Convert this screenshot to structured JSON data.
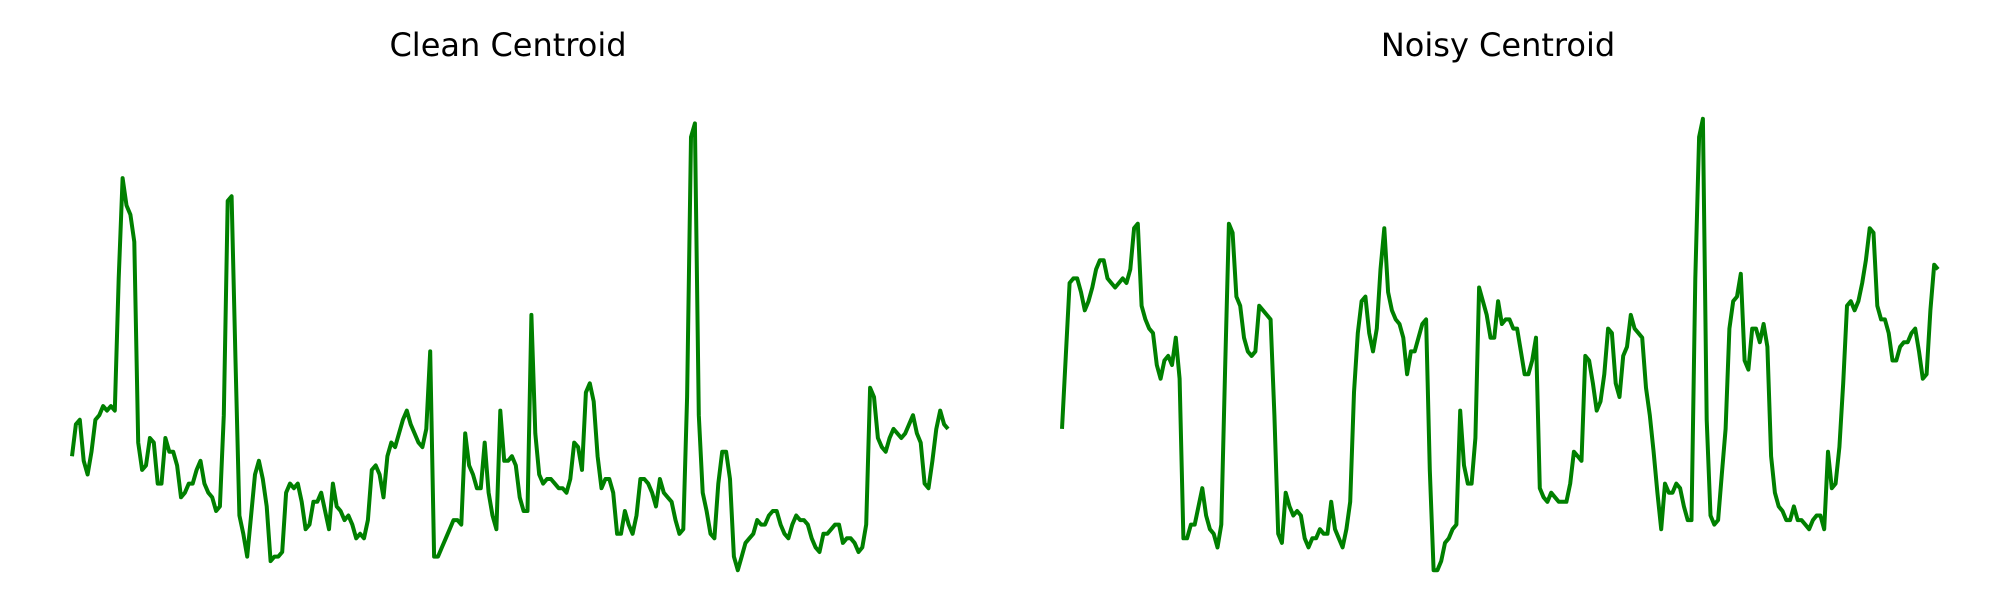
{
  "chart_data": [
    {
      "type": "line",
      "title": "Clean Centroid",
      "xlabel": "",
      "ylabel": "",
      "grid": false,
      "axes_visible": false,
      "color": "#008000",
      "ylim": [
        0,
        1
      ],
      "series": [
        {
          "values": [
            0.21,
            0.28,
            0.29,
            0.2,
            0.17,
            0.22,
            0.29,
            0.3,
            0.32,
            0.31,
            0.32,
            0.31,
            0.6,
            0.82,
            0.76,
            0.74,
            0.68,
            0.24,
            0.18,
            0.19,
            0.25,
            0.24,
            0.15,
            0.15,
            0.25,
            0.22,
            0.22,
            0.19,
            0.12,
            0.13,
            0.15,
            0.15,
            0.18,
            0.2,
            0.15,
            0.13,
            0.12,
            0.09,
            0.1,
            0.3,
            0.77,
            0.78,
            0.42,
            0.08,
            0.04,
            -0.01,
            0.08,
            0.17,
            0.2,
            0.16,
            0.1,
            -0.02,
            -0.01,
            -0.01,
            0.0,
            0.13,
            0.15,
            0.14,
            0.15,
            0.11,
            0.05,
            0.06,
            0.11,
            0.11,
            0.13,
            0.09,
            0.05,
            0.15,
            0.1,
            0.09,
            0.07,
            0.08,
            0.06,
            0.03,
            0.04,
            0.03,
            0.07,
            0.18,
            0.19,
            0.17,
            0.12,
            0.21,
            0.24,
            0.23,
            0.26,
            0.29,
            0.31,
            0.28,
            0.26,
            0.24,
            0.23,
            0.27,
            0.44,
            -0.01,
            -0.01,
            0.01,
            0.03,
            0.05,
            0.07,
            0.07,
            0.06,
            0.26,
            0.19,
            0.17,
            0.14,
            0.14,
            0.24,
            0.13,
            0.08,
            0.05,
            0.31,
            0.2,
            0.2,
            0.21,
            0.19,
            0.12,
            0.09,
            0.09,
            0.52,
            0.26,
            0.17,
            0.15,
            0.16,
            0.16,
            0.15,
            0.14,
            0.14,
            0.13,
            0.16,
            0.24,
            0.23,
            0.18,
            0.35,
            0.37,
            0.33,
            0.21,
            0.14,
            0.16,
            0.16,
            0.13,
            0.04,
            0.04,
            0.09,
            0.06,
            0.04,
            0.08,
            0.16,
            0.16,
            0.15,
            0.13,
            0.1,
            0.16,
            0.13,
            0.12,
            0.11,
            0.07,
            0.04,
            0.05,
            0.34,
            0.91,
            0.94,
            0.3,
            0.13,
            0.09,
            0.04,
            0.03,
            0.15,
            0.22,
            0.22,
            0.16,
            -0.01,
            -0.04,
            -0.01,
            0.02,
            0.03,
            0.04,
            0.07,
            0.06,
            0.06,
            0.08,
            0.09,
            0.09,
            0.06,
            0.04,
            0.03,
            0.06,
            0.08,
            0.07,
            0.07,
            0.06,
            0.03,
            0.01,
            0.0,
            0.04,
            0.04,
            0.05,
            0.06,
            0.06,
            0.02,
            0.03,
            0.03,
            0.02,
            0.0,
            0.01,
            0.06,
            0.36,
            0.34,
            0.25,
            0.23,
            0.22,
            0.25,
            0.27,
            0.26,
            0.25,
            0.26,
            0.28,
            0.3,
            0.26,
            0.24,
            0.15,
            0.14,
            0.2,
            0.27,
            0.31,
            0.28,
            0.27
          ]
        }
      ]
    },
    {
      "type": "line",
      "title": "Noisy Centroid",
      "xlabel": "",
      "ylabel": "",
      "grid": false,
      "axes_visible": false,
      "color": "#008000",
      "ylim": [
        0,
        1
      ],
      "series": [
        {
          "values": [
            0.27,
            0.43,
            0.59,
            0.6,
            0.6,
            0.57,
            0.53,
            0.55,
            0.58,
            0.62,
            0.64,
            0.64,
            0.6,
            0.59,
            0.58,
            0.59,
            0.6,
            0.59,
            0.62,
            0.71,
            0.72,
            0.54,
            0.51,
            0.49,
            0.48,
            0.41,
            0.38,
            0.42,
            0.43,
            0.41,
            0.47,
            0.38,
            0.03,
            0.03,
            0.06,
            0.06,
            0.1,
            0.14,
            0.08,
            0.05,
            0.04,
            0.01,
            0.06,
            0.4,
            0.72,
            0.7,
            0.56,
            0.54,
            0.47,
            0.44,
            0.43,
            0.44,
            0.54,
            0.53,
            0.52,
            0.51,
            0.3,
            0.04,
            0.02,
            0.13,
            0.1,
            0.08,
            0.09,
            0.08,
            0.03,
            0.01,
            0.03,
            0.03,
            0.05,
            0.04,
            0.04,
            0.11,
            0.05,
            0.03,
            0.01,
            0.05,
            0.11,
            0.35,
            0.48,
            0.55,
            0.56,
            0.48,
            0.44,
            0.49,
            0.62,
            0.71,
            0.57,
            0.53,
            0.51,
            0.5,
            0.47,
            0.39,
            0.44,
            0.44,
            0.47,
            0.5,
            0.51,
            0.18,
            -0.04,
            -0.04,
            -0.02,
            0.02,
            0.03,
            0.05,
            0.06,
            0.31,
            0.19,
            0.15,
            0.15,
            0.25,
            0.58,
            0.55,
            0.52,
            0.47,
            0.47,
            0.55,
            0.5,
            0.51,
            0.51,
            0.49,
            0.49,
            0.44,
            0.39,
            0.39,
            0.42,
            0.47,
            0.14,
            0.12,
            0.11,
            0.13,
            0.12,
            0.11,
            0.11,
            0.11,
            0.15,
            0.22,
            0.21,
            0.2,
            0.43,
            0.42,
            0.37,
            0.31,
            0.33,
            0.39,
            0.49,
            0.48,
            0.37,
            0.34,
            0.43,
            0.45,
            0.52,
            0.49,
            0.48,
            0.47,
            0.36,
            0.3,
            0.22,
            0.13,
            0.05,
            0.15,
            0.13,
            0.13,
            0.15,
            0.14,
            0.1,
            0.07,
            0.07,
            0.6,
            0.91,
            0.95,
            0.29,
            0.08,
            0.06,
            0.07,
            0.17,
            0.27,
            0.49,
            0.55,
            0.56,
            0.61,
            0.42,
            0.4,
            0.49,
            0.49,
            0.46,
            0.5,
            0.45,
            0.21,
            0.13,
            0.1,
            0.09,
            0.07,
            0.07,
            0.1,
            0.07,
            0.07,
            0.06,
            0.05,
            0.07,
            0.08,
            0.08,
            0.05,
            0.22,
            0.14,
            0.15,
            0.23,
            0.37,
            0.54,
            0.55,
            0.53,
            0.55,
            0.59,
            0.64,
            0.71,
            0.7,
            0.54,
            0.51,
            0.51,
            0.48,
            0.42,
            0.42,
            0.45,
            0.46,
            0.46,
            0.48,
            0.49,
            0.44,
            0.38,
            0.39,
            0.53,
            0.63,
            0.62
          ]
        }
      ]
    }
  ]
}
